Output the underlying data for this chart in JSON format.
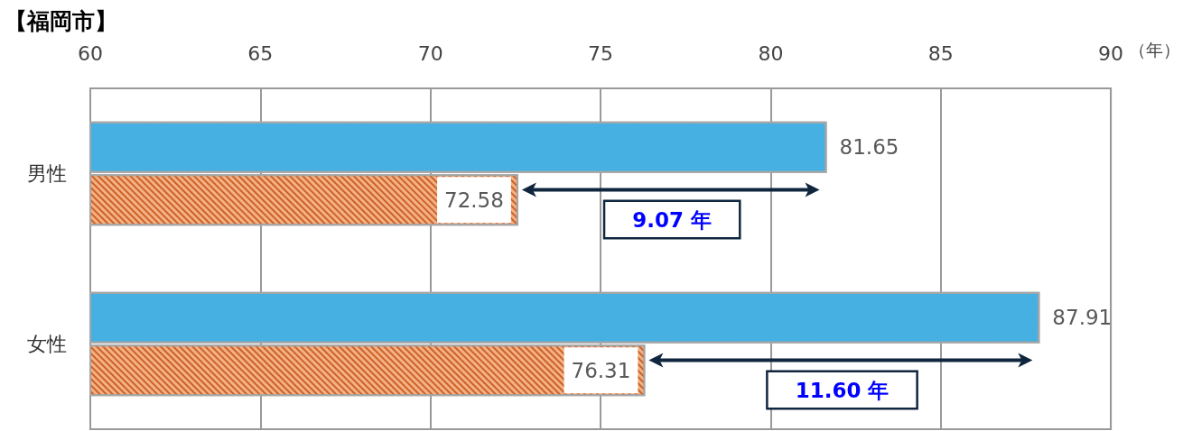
{
  "chart_data": {
    "type": "bar",
    "orientation": "horizontal",
    "title": "【福岡市】",
    "xlabel": "（年）",
    "categories": [
      "男性",
      "女性"
    ],
    "series": [
      {
        "color": "#45b0e1",
        "values": [
          81.65,
          87.91
        ]
      },
      {
        "color": "#f4b183",
        "values": [
          72.58,
          76.31
        ]
      }
    ],
    "xlim": [
      60,
      90
    ],
    "xticks": [
      60,
      65,
      70,
      75,
      80,
      85,
      90
    ],
    "grid": "x",
    "data_labels": true,
    "annotations": [
      {
        "text": "9.07 年",
        "x": 77.1,
        "y": "男性"
      },
      {
        "text": "11.60 年",
        "x": 82.1,
        "y": "女性"
      }
    ]
  }
}
